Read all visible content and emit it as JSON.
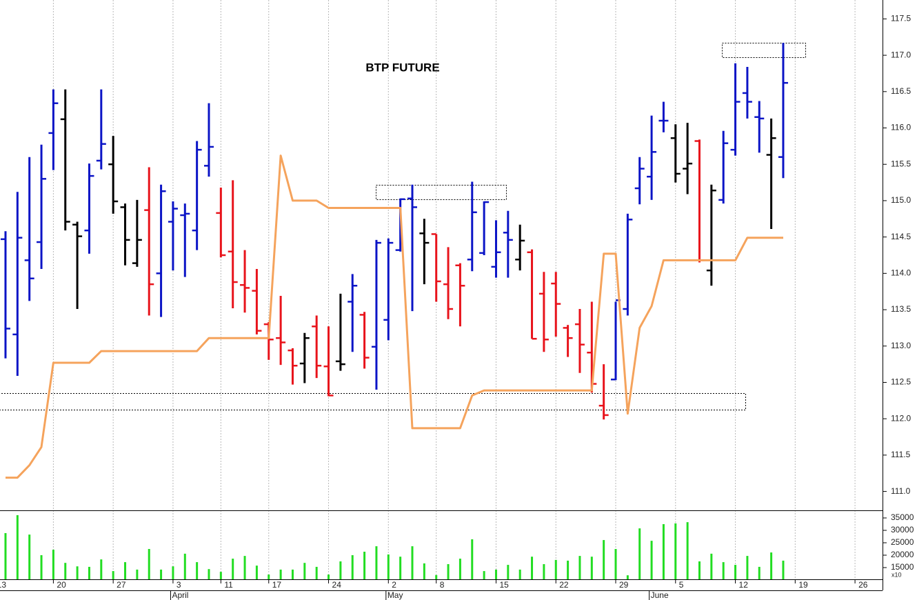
{
  "chart_data": {
    "type": "ohlc",
    "title": "BTP FUTURE",
    "x": [
      0,
      1,
      2,
      3,
      4,
      5,
      6,
      7,
      8,
      9,
      10,
      11,
      12,
      13,
      14,
      15,
      16,
      17,
      18,
      19,
      20,
      21,
      22,
      23,
      24,
      25,
      26,
      27,
      28,
      29,
      30,
      31,
      32,
      33,
      34,
      35,
      36,
      37,
      38,
      39,
      40,
      41,
      42,
      43,
      44,
      45,
      46,
      47,
      48,
      49,
      50,
      51,
      52,
      53,
      54,
      55,
      56,
      57,
      58,
      59,
      60,
      61,
      62,
      63,
      64,
      65
    ],
    "open": [
      114.47,
      113.16,
      114.18,
      114.43,
      115.93,
      116.12,
      114.67,
      114.59,
      115.55,
      115.5,
      114.91,
      114.14,
      114.87,
      114.0,
      114.71,
      114.8,
      114.59,
      115.48,
      114.83,
      114.3,
      113.84,
      113.76,
      113.3,
      113.11,
      112.94,
      112.76,
      113.27,
      112.72,
      112.79,
      113.61,
      113.43,
      112.99,
      113.36,
      114.32,
      115.03,
      114.55,
      114.54,
      113.85,
      114.11,
      114.19,
      114.28,
      114.09,
      114.56,
      114.19,
      114.29,
      113.72,
      113.86,
      113.25,
      113.3,
      112.91,
      112.18,
      112.54,
      113.51,
      115.17,
      115.33,
      116.1,
      115.86,
      115.44,
      115.82,
      114.04,
      115.01,
      115.7,
      116.48,
      116.15,
      115.63,
      115.6
    ],
    "high": [
      114.58,
      115.12,
      115.6,
      115.77,
      116.53,
      116.53,
      114.71,
      115.51,
      116.53,
      115.89,
      114.96,
      115.01,
      115.46,
      115.22,
      114.99,
      114.96,
      115.82,
      116.34,
      115.18,
      115.28,
      114.32,
      114.06,
      113.33,
      113.69,
      112.97,
      113.18,
      113.42,
      113.27,
      113.72,
      113.99,
      113.47,
      114.46,
      114.48,
      115.03,
      115.22,
      114.75,
      114.54,
      114.36,
      114.14,
      115.26,
      114.99,
      114.73,
      114.86,
      114.67,
      114.33,
      114.02,
      114.02,
      113.29,
      113.51,
      113.61,
      112.75,
      113.61,
      114.82,
      115.6,
      116.17,
      116.36,
      116.05,
      116.07,
      115.84,
      115.22,
      115.96,
      116.89,
      116.84,
      116.37,
      116.13,
      117.17
    ],
    "low": [
      112.83,
      112.59,
      113.62,
      114.06,
      115.42,
      114.59,
      113.51,
      114.27,
      115.43,
      114.82,
      114.11,
      114.09,
      113.42,
      113.4,
      114.04,
      113.95,
      114.32,
      115.33,
      114.22,
      113.52,
      113.46,
      113.16,
      112.81,
      112.74,
      112.47,
      112.49,
      112.56,
      112.31,
      112.66,
      112.92,
      112.69,
      112.4,
      113.08,
      114.3,
      113.48,
      113.85,
      113.61,
      113.37,
      113.27,
      114.03,
      114.25,
      113.94,
      113.94,
      114.04,
      113.1,
      112.92,
      113.13,
      112.85,
      112.63,
      112.36,
      111.99,
      112.53,
      113.42,
      114.95,
      115.01,
      115.94,
      115.25,
      115.09,
      114.15,
      113.83,
      114.96,
      115.62,
      116.13,
      115.66,
      114.61,
      115.31
    ],
    "close": [
      113.24,
      114.49,
      113.93,
      115.3,
      116.34,
      114.71,
      114.51,
      115.34,
      115.78,
      114.99,
      114.46,
      114.46,
      113.85,
      115.13,
      114.89,
      114.82,
      115.7,
      115.74,
      114.25,
      113.88,
      113.8,
      113.21,
      113.09,
      113.05,
      112.73,
      113.11,
      112.73,
      112.32,
      112.75,
      113.83,
      112.84,
      114.42,
      114.42,
      115.02,
      114.91,
      114.42,
      113.89,
      113.51,
      113.83,
      114.84,
      114.98,
      114.29,
      114.46,
      114.45,
      113.1,
      113.09,
      113.58,
      113.11,
      113.02,
      112.48,
      112.05,
      113.63,
      114.74,
      115.44,
      115.67,
      116.1,
      115.37,
      115.51,
      114.18,
      115.14,
      115.79,
      116.36,
      116.36,
      116.13,
      115.86,
      116.62
    ],
    "bar_colors": [
      "#0b14c6",
      "#0b14c6",
      "#0b14c6",
      "#0b14c6",
      "#0b14c6",
      "#000000",
      "#000000",
      "#0b14c6",
      "#0b14c6",
      "#000000",
      "#000000",
      "#000000",
      "#e8131b",
      "#0b14c6",
      "#0b14c6",
      "#0b14c6",
      "#0b14c6",
      "#0b14c6",
      "#e8131b",
      "#e8131b",
      "#e8131b",
      "#e8131b",
      "#e8131b",
      "#e8131b",
      "#e8131b",
      "#000000",
      "#e8131b",
      "#e8131b",
      "#000000",
      "#0b14c6",
      "#e8131b",
      "#0b14c6",
      "#0b14c6",
      "#0b14c6",
      "#0b14c6",
      "#000000",
      "#e8131b",
      "#e8131b",
      "#e8131b",
      "#0b14c6",
      "#0b14c6",
      "#0b14c6",
      "#0b14c6",
      "#000000",
      "#e8131b",
      "#e8131b",
      "#e8131b",
      "#e8131b",
      "#e8131b",
      "#e8131b",
      "#e8131b",
      "#0b14c6",
      "#0b14c6",
      "#0b14c6",
      "#0b14c6",
      "#0b14c6",
      "#000000",
      "#000000",
      "#e8131b",
      "#000000",
      "#0b14c6",
      "#0b14c6",
      "#0b14c6",
      "#0b14c6",
      "#000000",
      "#0b14c6"
    ],
    "line": {
      "color": "#f5a35c",
      "values": [
        111.19,
        111.19,
        111.36,
        111.61,
        112.77,
        112.77,
        112.77,
        112.77,
        112.93,
        112.93,
        112.93,
        112.93,
        112.93,
        112.93,
        112.93,
        112.93,
        112.93,
        113.11,
        113.11,
        113.11,
        113.11,
        113.11,
        113.11,
        115.62,
        115.0,
        115.0,
        115.0,
        114.9,
        114.9,
        114.9,
        114.9,
        114.9,
        114.9,
        114.9,
        111.87,
        111.87,
        111.87,
        111.87,
        111.87,
        112.32,
        112.39,
        112.39,
        112.39,
        112.39,
        112.39,
        112.39,
        112.39,
        112.39,
        112.39,
        112.39,
        114.27,
        114.27,
        112.07,
        113.25,
        113.55,
        114.18,
        114.18,
        114.18,
        114.18,
        114.18,
        114.18,
        114.18,
        114.49,
        114.49,
        114.49,
        114.49
      ]
    },
    "xlim": [
      -0.46,
      73.3
    ],
    "ylim": [
      110.74,
      117.76
    ],
    "yticks": [
      {
        "value": 111.0,
        "label": "111.0"
      },
      {
        "value": 111.5,
        "label": "111.5"
      },
      {
        "value": 112.0,
        "label": "112.0"
      },
      {
        "value": 112.5,
        "label": "112.5"
      },
      {
        "value": 113.0,
        "label": "113.0"
      },
      {
        "value": 113.5,
        "label": "113.5"
      },
      {
        "value": 114.0,
        "label": "114.0"
      },
      {
        "value": 114.5,
        "label": "114.5"
      },
      {
        "value": 115.0,
        "label": "115.0"
      },
      {
        "value": 115.5,
        "label": "115.5"
      },
      {
        "value": 116.0,
        "label": "116.0"
      },
      {
        "value": 116.5,
        "label": "116.5"
      },
      {
        "value": 117.0,
        "label": "117.0"
      },
      {
        "value": 117.5,
        "label": "117.5"
      }
    ],
    "xticks": [
      {
        "value": -1,
        "label": "13"
      },
      {
        "value": 4,
        "label": "20"
      },
      {
        "value": 9,
        "label": "27"
      },
      {
        "value": 14,
        "label": "3"
      },
      {
        "value": 18,
        "label": "11"
      },
      {
        "value": 22,
        "label": "17"
      },
      {
        "value": 27,
        "label": "24"
      },
      {
        "value": 32,
        "label": "2"
      },
      {
        "value": 36,
        "label": "8"
      },
      {
        "value": 41,
        "label": "15"
      },
      {
        "value": 46,
        "label": "22"
      },
      {
        "value": 51,
        "label": "29"
      },
      {
        "value": 56,
        "label": "5"
      },
      {
        "value": 61,
        "label": "12"
      },
      {
        "value": 66,
        "label": "19"
      },
      {
        "value": 71,
        "label": "26"
      }
    ],
    "month_ticks": [
      {
        "value": 13.8,
        "label": "April"
      },
      {
        "value": 31.8,
        "label": "May"
      },
      {
        "value": 53.8,
        "label": "June"
      }
    ],
    "grid": true,
    "volume": {
      "color": "#22dd22",
      "multiplier_label": "x10",
      "values": [
        28900,
        36100,
        28300,
        20000,
        22200,
        16900,
        15500,
        15300,
        18300,
        13600,
        17200,
        14200,
        22500,
        14200,
        15500,
        20600,
        17200,
        14400,
        13300,
        18600,
        19700,
        15800,
        12200,
        14200,
        14200,
        16900,
        15300,
        12200,
        17500,
        20000,
        21400,
        23600,
        20300,
        19400,
        23600,
        16700,
        12000,
        16400,
        18600,
        26400,
        13600,
        14200,
        16100,
        14200,
        19400,
        16400,
        18100,
        17800,
        19700,
        19400,
        26100,
        22500,
        11900,
        30800,
        25800,
        32500,
        32800,
        33300,
        17500,
        20600,
        17200,
        16100,
        19700,
        15300,
        21100,
        17800
      ],
      "ylim": [
        10280,
        38060
      ],
      "yticks": [
        15000,
        20000,
        25000,
        30000,
        35000
      ]
    }
  }
}
